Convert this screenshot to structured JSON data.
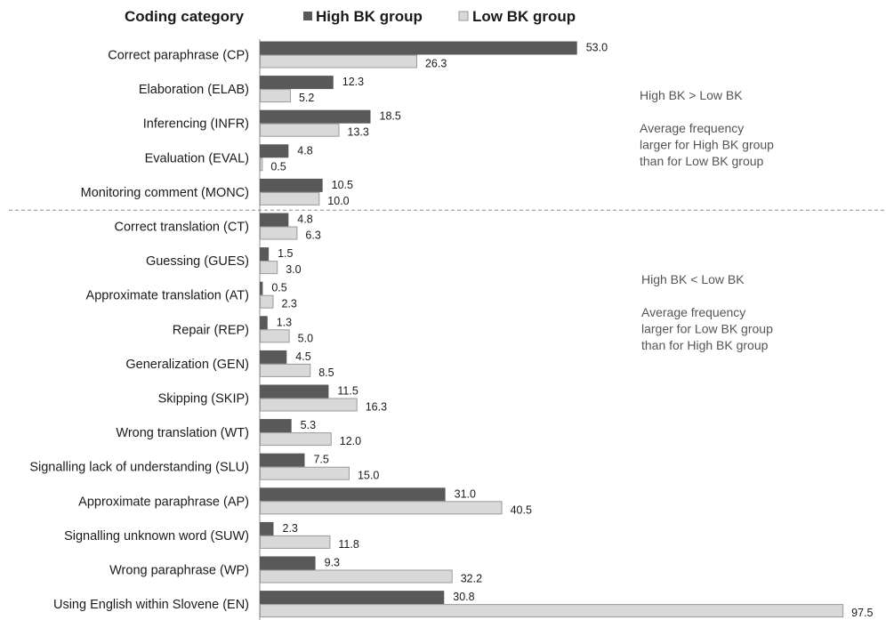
{
  "colors": {
    "high": "#595959",
    "low": "#d9d9d9",
    "low_border": "#9a9a9a",
    "divider": "#8c8c8c"
  },
  "chart_data": {
    "type": "bar",
    "orientation": "horizontal",
    "xlabel": "Coding category",
    "xlim": [
      0,
      100
    ],
    "legend_position": "top",
    "series": [
      {
        "name": "High BK group",
        "values": [
          53.0,
          12.3,
          18.5,
          4.8,
          10.5,
          4.8,
          1.5,
          0.5,
          1.3,
          4.5,
          11.5,
          5.3,
          7.5,
          31.0,
          2.3,
          9.3,
          30.8
        ]
      },
      {
        "name": "Low BK group",
        "values": [
          26.3,
          5.2,
          13.3,
          0.5,
          10.0,
          6.3,
          3.0,
          2.3,
          5.0,
          8.5,
          16.3,
          12.0,
          15.0,
          40.5,
          11.8,
          32.2,
          97.5
        ]
      }
    ],
    "categories": [
      "Correct paraphrase (CP)",
      "Elaboration (ELAB)",
      "Inferencing (INFR)",
      "Evaluation (EVAL)",
      "Monitoring comment (MONC)",
      "Correct translation (CT)",
      "Guessing (GUES)",
      "Approximate translation (AT)",
      "Repair (REP)",
      "Generalization (GEN)",
      "Skipping (SKIP)",
      "Wrong translation (WT)",
      "Signalling lack of understanding (SLU)",
      "Approximate paraphrase (AP)",
      "Signalling unknown word (SUW)",
      "Wrong paraphrase (WP)",
      "Using English within Slovene (EN)"
    ],
    "value_labels": {
      "high": [
        "53.0",
        "12.3",
        "18.5",
        "4.8",
        "10.5",
        "4.8",
        "1.5",
        "0.5",
        "1.3",
        "4.5",
        "11.5",
        "5.3",
        "7.5",
        "31.0",
        "2.3",
        "9.3",
        "30.8"
      ],
      "low": [
        "26.3",
        "5.2",
        "13.3",
        "0.5",
        "10.0",
        "6.3",
        "3.0",
        "2.3",
        "5.0",
        "8.5",
        "16.3",
        "12.0",
        "15.0",
        "40.5",
        "11.8",
        "32.2",
        "97.5"
      ]
    },
    "annotations": [
      {
        "lines": [
          "High BK > Low BK",
          "",
          "Average frequency",
          "larger for High BK group",
          "than for Low BK group"
        ]
      },
      {
        "lines": [
          "High BK < Low BK",
          "",
          "Average frequency",
          "larger for Low BK group",
          "than for High BK group"
        ]
      }
    ],
    "divider_after_index": 4
  }
}
